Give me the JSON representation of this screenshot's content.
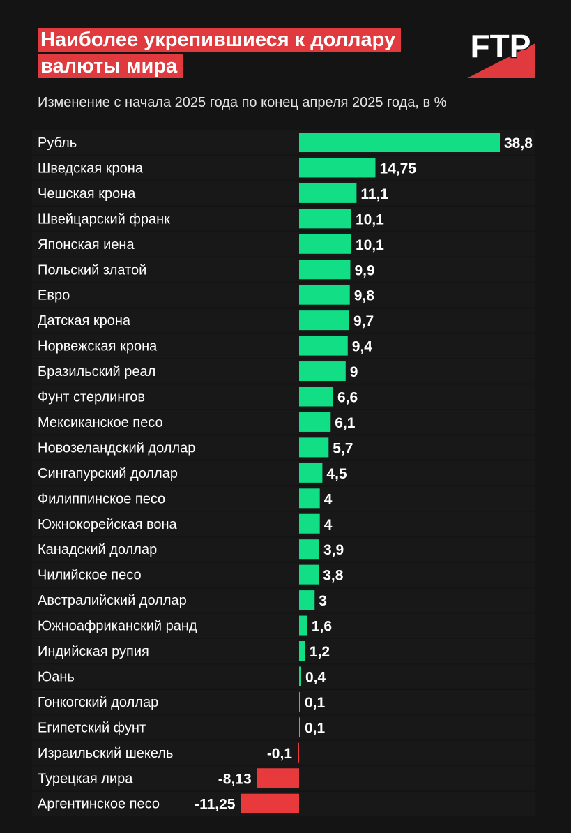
{
  "header": {
    "title_line1": "Наиболее укрепившиеся к доллару",
    "title_line2": "валюты мира",
    "subtitle": "Изменение с начала 2025 года по конец апреля 2025 года, в %",
    "logo_text": "FTP"
  },
  "colors": {
    "background": "#141414",
    "positive": "#12de86",
    "negative": "#e83a3d",
    "title_bg": "#e03a3e",
    "text": "#ffffff"
  },
  "chart_data": {
    "type": "bar",
    "orientation": "horizontal",
    "title": "Наиболее укрепившиеся к доллару валюты мира",
    "subtitle": "Изменение с начала 2025 года по конец апреля 2025 года, в %",
    "categories": [
      "Рубль",
      "Шведская крона",
      "Чешская крона",
      "Швейцарский франк",
      "Японская иена",
      "Польский златой",
      "Евро",
      "Датская крона",
      "Норвежская крона",
      "Бразильский реал",
      "Фунт стерлингов",
      "Мексиканское песо",
      "Новозеландский доллар",
      "Сингапурский доллар",
      "Филиппинское песо",
      "Южнокорейская вона",
      "Канадский доллар",
      "Чилийское песо",
      "Австралийский доллар",
      "Южноафриканский ранд",
      "Индийская рупия",
      "Юань",
      "Гонкогский доллар",
      "Египетский фунт",
      "Израильский шекель",
      "Турецкая лира",
      "Аргентинское песо"
    ],
    "values": [
      38.8,
      14.75,
      11.1,
      10.1,
      10.1,
      9.9,
      9.8,
      9.7,
      9.4,
      9,
      6.6,
      6.1,
      5.7,
      4.5,
      4,
      4,
      3.9,
      3.8,
      3,
      1.6,
      1.2,
      0.4,
      0.1,
      0.1,
      -0.1,
      -8.13,
      -11.25
    ],
    "value_labels": [
      "38,8",
      "14,75",
      "11,1",
      "10,1",
      "10,1",
      "9,9",
      "9,8",
      "9,7",
      "9,4",
      "9",
      "6,6",
      "6,1",
      "5,7",
      "4,5",
      "4",
      "4",
      "3,9",
      "3,8",
      "3",
      "1,6",
      "1,2",
      "0,4",
      "0,1",
      "0,1",
      "-0,1",
      "-8,13",
      "-11,25"
    ],
    "xlabel": "",
    "ylabel": "",
    "xlim": [
      -11.25,
      38.8
    ],
    "grid": false,
    "legend": "none"
  }
}
